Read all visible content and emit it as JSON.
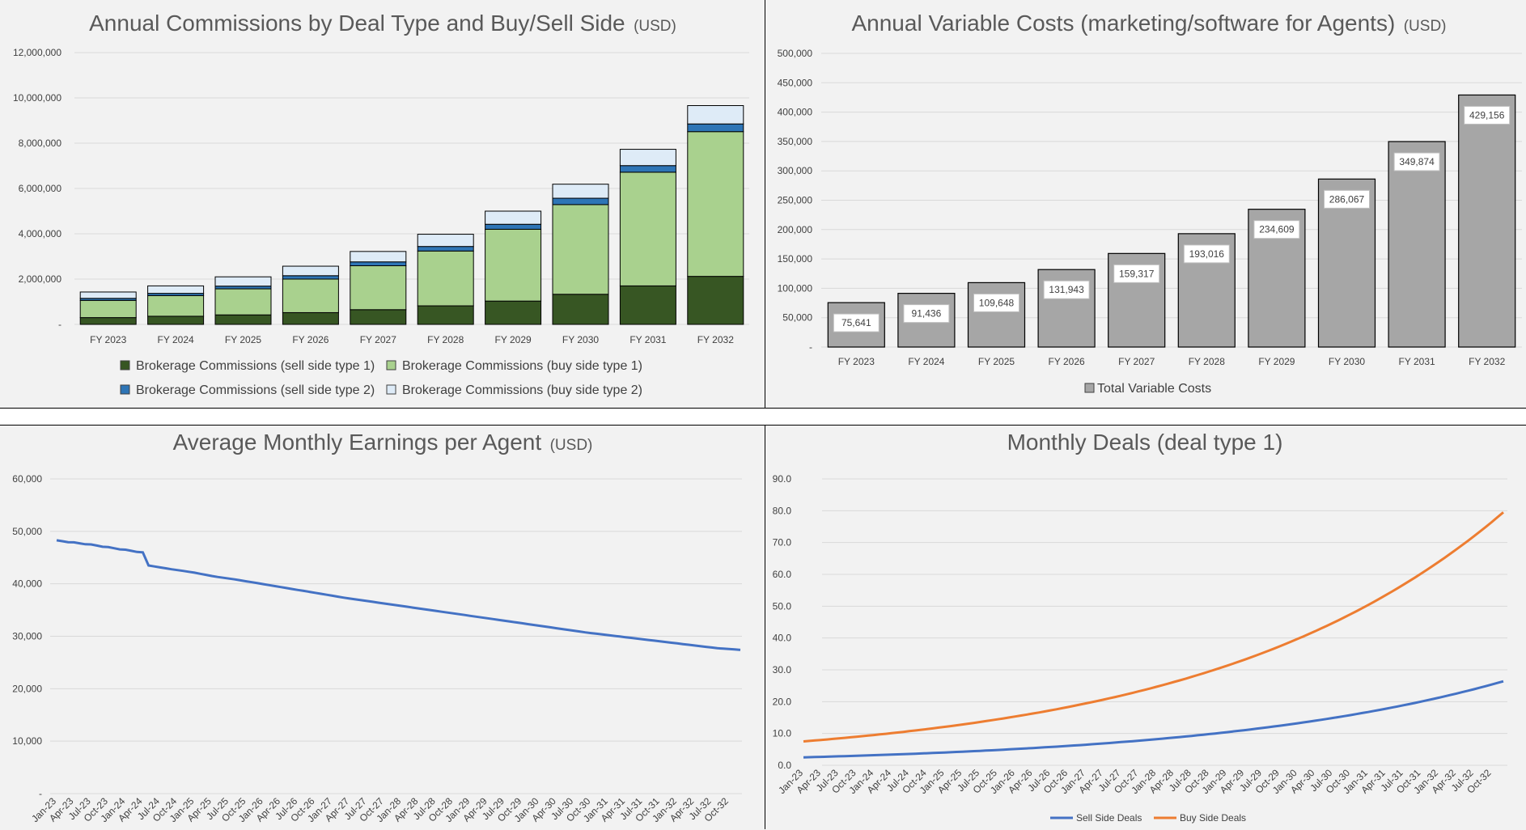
{
  "charts": {
    "commissions": {
      "title": "Annual Commissions by Deal Type and Buy/Sell Side",
      "unit": "(USD)",
      "y_ticks": [
        "-",
        "2,000,000",
        "4,000,000",
        "6,000,000",
        "8,000,000",
        "10,000,000",
        "12,000,000"
      ],
      "legend": [
        "Brokerage Commissions (sell side type 1)",
        "Brokerage Commissions (buy side type 1)",
        "Brokerage Commissions (sell side type 2)",
        "Brokerage Commissions (buy side type 2)"
      ]
    },
    "variable_costs": {
      "title": "Annual Variable Costs (marketing/software for Agents)",
      "unit": "(USD)",
      "y_ticks": [
        "-",
        "50,000",
        "100,000",
        "150,000",
        "200,000",
        "250,000",
        "300,000",
        "350,000",
        "400,000",
        "450,000",
        "500,000"
      ],
      "legend": [
        "Total Variable Costs"
      ],
      "data_labels": [
        "75,641",
        "91,436",
        "109,648",
        "131,943",
        "159,317",
        "193,016",
        "234,609",
        "286,067",
        "349,874",
        "429,156"
      ]
    },
    "earnings": {
      "title": "Average Monthly Earnings per Agent",
      "unit": "(USD)",
      "y_ticks": [
        "-",
        "10,000",
        "20,000",
        "30,000",
        "40,000",
        "50,000",
        "60,000"
      ]
    },
    "deals": {
      "title": "Monthly Deals (deal type 1)",
      "y_ticks": [
        "0.0",
        "10.0",
        "20.0",
        "30.0",
        "40.0",
        "50.0",
        "60.0",
        "70.0",
        "80.0",
        "90.0"
      ],
      "legend": [
        "Sell Side Deals",
        "Buy Side Deals"
      ]
    }
  },
  "colors": {
    "sell1": "#375623",
    "buy1": "#a9d18e",
    "sell2": "#2e75b6",
    "buy2": "#deebf7",
    "gray_bar": "#a6a6a6",
    "blue_line": "#4472c4",
    "orange_line": "#ed7d31"
  },
  "chart_data": [
    {
      "type": "bar",
      "stacked": true,
      "title": "Annual Commissions by Deal Type and Buy/Sell Side (USD)",
      "categories": [
        "FY 2023",
        "FY 2024",
        "FY 2025",
        "FY 2026",
        "FY 2027",
        "FY 2028",
        "FY 2029",
        "FY 2030",
        "FY 2031",
        "FY 2032"
      ],
      "series": [
        {
          "name": "Brokerage Commissions (sell side type 1)",
          "values": [
            300000,
            360000,
            420000,
            520000,
            650000,
            820000,
            1030000,
            1330000,
            1700000,
            2120000
          ]
        },
        {
          "name": "Brokerage Commissions (buy side type 1)",
          "values": [
            760000,
            910000,
            1150000,
            1480000,
            1940000,
            2420000,
            3170000,
            3960000,
            5020000,
            6390000
          ]
        },
        {
          "name": "Brokerage Commissions (sell side type 2)",
          "values": [
            90000,
            100000,
            120000,
            150000,
            170000,
            200000,
            220000,
            280000,
            290000,
            340000
          ]
        },
        {
          "name": "Brokerage Commissions (buy side type 2)",
          "values": [
            280000,
            330000,
            410000,
            420000,
            460000,
            540000,
            580000,
            620000,
            720000,
            810000
          ]
        }
      ],
      "ylim": [
        0,
        12000000
      ],
      "grid": true,
      "legend_position": "bottom"
    },
    {
      "type": "bar",
      "title": "Annual Variable Costs (marketing/software for Agents) (USD)",
      "categories": [
        "FY 2023",
        "FY 2024",
        "FY 2025",
        "FY 2026",
        "FY 2027",
        "FY 2028",
        "FY 2029",
        "FY 2030",
        "FY 2031",
        "FY 2032"
      ],
      "series": [
        {
          "name": "Total Variable Costs",
          "values": [
            75641,
            91436,
            109648,
            131943,
            159317,
            193016,
            234609,
            286067,
            349874,
            429156
          ]
        }
      ],
      "ylim": [
        0,
        500000
      ],
      "grid": true,
      "legend_position": "bottom"
    },
    {
      "type": "line",
      "title": "Average Monthly Earnings per Agent (USD)",
      "x_range": [
        "Jan-23",
        "Dec-32"
      ],
      "x_tick_labels": [
        "Jan-23",
        "Apr-23",
        "Jul-23",
        "Oct-23",
        "Jan-24",
        "Apr-24",
        "Jul-24",
        "Oct-24",
        "Jan-25",
        "Apr-25",
        "Jul-25",
        "Oct-25",
        "Jan-26",
        "Apr-26",
        "Jul-26",
        "Oct-26",
        "Jan-27",
        "Apr-27",
        "Jul-27",
        "Oct-27",
        "Jan-28",
        "Apr-28",
        "Jul-28",
        "Oct-28",
        "Jan-29",
        "Apr-29",
        "Jul-29",
        "Oct-29",
        "Jan-30",
        "Apr-30",
        "Jul-30",
        "Oct-30",
        "Jan-31",
        "Apr-31",
        "Jul-31",
        "Oct-31",
        "Jan-32",
        "Apr-32",
        "Jul-32",
        "Oct-32"
      ],
      "series": [
        {
          "values": [
            48300,
            47900,
            47500,
            47000,
            46500,
            46000,
            43500,
            42800,
            42200,
            41400,
            40800,
            40100,
            39400,
            38700,
            38000,
            37300,
            36700,
            36100,
            35500,
            34900,
            34300,
            33700,
            33100,
            32500,
            31900,
            31300,
            30700,
            30200,
            29700,
            29200,
            28700,
            28200,
            27700,
            27400
          ]
        }
      ],
      "ylim": [
        0,
        60000
      ],
      "grid": true
    },
    {
      "type": "line",
      "title": "Monthly Deals (deal type 1)",
      "x_range": [
        "Jan-23",
        "Dec-32"
      ],
      "x_tick_labels": [
        "Jan-23",
        "Apr-23",
        "Jul-23",
        "Oct-23",
        "Jan-24",
        "Apr-24",
        "Jul-24",
        "Oct-24",
        "Jan-25",
        "Apr-25",
        "Jul-25",
        "Oct-25",
        "Jan-26",
        "Apr-26",
        "Jul-26",
        "Oct-26",
        "Jan-27",
        "Apr-27",
        "Jul-27",
        "Oct-27",
        "Jan-28",
        "Apr-28",
        "Jul-28",
        "Oct-28",
        "Jan-29",
        "Apr-29",
        "Jul-29",
        "Oct-29",
        "Jan-30",
        "Apr-30",
        "Jul-30",
        "Oct-30",
        "Jan-31",
        "Apr-31",
        "Jul-31",
        "Oct-31",
        "Jan-32",
        "Apr-32",
        "Jul-32",
        "Oct-32"
      ],
      "series": [
        {
          "name": "Sell Side Deals",
          "start": 2.5,
          "end": 26.4
        },
        {
          "name": "Buy Side Deals",
          "start": 7.5,
          "end": 79.5
        }
      ],
      "ylim": [
        0,
        90
      ],
      "grid": true,
      "legend_position": "bottom"
    }
  ]
}
